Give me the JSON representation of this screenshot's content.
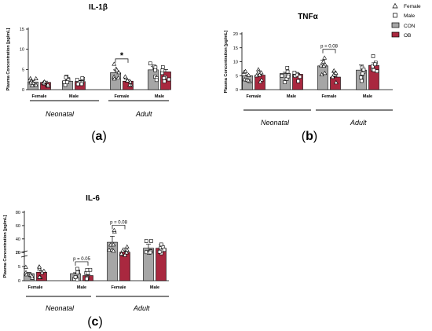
{
  "colors": {
    "con": "#a6a6a6",
    "ob": "#a9283f"
  },
  "legend": [
    {
      "label": "Female",
      "marker": "triangle"
    },
    {
      "label": "Male",
      "marker": "square"
    },
    {
      "label": "CON",
      "swatch": "con"
    },
    {
      "label": "OB",
      "swatch": "ob"
    }
  ],
  "chart_data": [
    {
      "panel": "(a)",
      "type": "bar",
      "title": "IL-1β",
      "ylabel": "Plasma Concentration [pg/mL]",
      "ylim": [
        0,
        15
      ],
      "yticks": [
        "0",
        "5",
        "10",
        "15"
      ],
      "categories": [
        "Female",
        "Male",
        "Female",
        "Male"
      ],
      "groups": [
        "Neonatal",
        "Adult"
      ],
      "series": [
        {
          "name": "CON",
          "values": [
            1.9,
            2.1,
            4.2,
            4.9
          ],
          "errors": [
            0.4,
            0.3,
            0.7,
            0.9
          ]
        },
        {
          "name": "OB",
          "values": [
            1.8,
            2.0,
            2.1,
            4.4
          ],
          "errors": [
            0.3,
            0.3,
            0.4,
            0.6
          ]
        }
      ],
      "annotations": [
        {
          "text": "*",
          "category_index": 2
        }
      ]
    },
    {
      "panel": "(b)",
      "type": "bar",
      "title": "TNFα",
      "ylabel": "Plasma Concentration [pg/mL]",
      "ylim": [
        0,
        20
      ],
      "yticks": [
        "0",
        "5",
        "10",
        "15",
        "20"
      ],
      "categories": [
        "Female",
        "Male",
        "Female",
        "Male"
      ],
      "groups": [
        "Neonatal",
        "Adult"
      ],
      "series": [
        {
          "name": "CON",
          "values": [
            5.0,
            5.8,
            8.5,
            7.0
          ],
          "errors": [
            0.3,
            0.4,
            2.0,
            1.8
          ]
        },
        {
          "name": "OB",
          "values": [
            5.2,
            5.5,
            4.5,
            8.7
          ],
          "errors": [
            0.3,
            0.3,
            0.8,
            0.9
          ]
        }
      ],
      "annotations": [
        {
          "text": "p = 0.08",
          "category_index": 2
        }
      ]
    },
    {
      "panel": "(c)",
      "type": "bar",
      "title": "IL-6",
      "ylabel": "Plasma Concentration [pg/mL]",
      "ylim": [
        0,
        80
      ],
      "axis_break": [
        10,
        15
      ],
      "yticks": [
        "0",
        "5",
        "10",
        "20",
        "40",
        "60",
        "80"
      ],
      "categories": [
        "Female",
        "Male",
        "Female",
        "Male"
      ],
      "groups": [
        "Neonatal",
        "Adult"
      ],
      "series": [
        {
          "name": "CON",
          "values": [
            2.5,
            2.5,
            35,
            26
          ],
          "errors": [
            0.4,
            0.3,
            9,
            6
          ]
        },
        {
          "name": "OB",
          "values": [
            3.0,
            1.8,
            20,
            26
          ],
          "errors": [
            0.4,
            0.3,
            6,
            5
          ]
        }
      ],
      "annotations": [
        {
          "text": "p = 0.05",
          "category_index": 1
        },
        {
          "text": "p = 0.08",
          "category_index": 2
        }
      ]
    }
  ]
}
